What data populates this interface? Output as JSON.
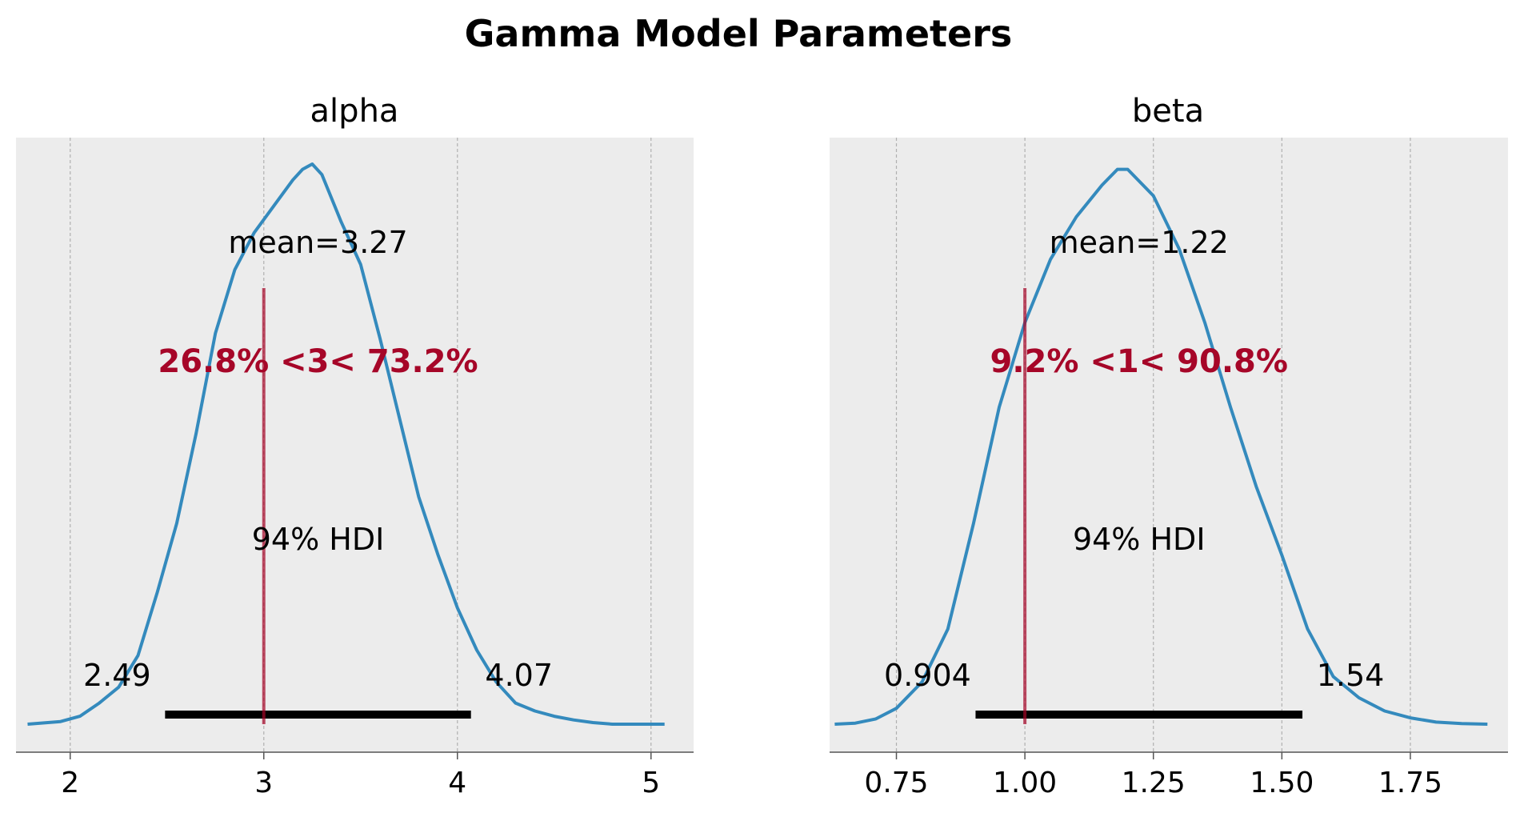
{
  "title": "Gamma Model Parameters",
  "chart_data": [
    {
      "type": "line",
      "title": "alpha",
      "xlim": [
        1.72,
        5.22
      ],
      "ylim": [
        0,
        1.06
      ],
      "xticks": [
        2,
        3,
        4,
        5
      ],
      "grid": true,
      "density": {
        "x": [
          1.78,
          1.95,
          2.05,
          2.15,
          2.25,
          2.35,
          2.45,
          2.55,
          2.65,
          2.75,
          2.85,
          2.95,
          3.05,
          3.15,
          3.2,
          3.25,
          3.3,
          3.4,
          3.5,
          3.6,
          3.7,
          3.8,
          3.9,
          4.0,
          4.1,
          4.2,
          4.3,
          4.4,
          4.5,
          4.6,
          4.7,
          4.8,
          4.9,
          5.0,
          5.07
        ],
        "y": [
          0.0,
          0.005,
          0.015,
          0.04,
          0.07,
          0.13,
          0.25,
          0.38,
          0.55,
          0.74,
          0.86,
          0.93,
          0.98,
          1.03,
          1.05,
          1.06,
          1.04,
          0.95,
          0.87,
          0.73,
          0.58,
          0.43,
          0.32,
          0.22,
          0.14,
          0.08,
          0.04,
          0.025,
          0.015,
          0.008,
          0.003,
          0.0,
          0.0,
          0.0,
          0.0
        ]
      },
      "mean_label": "mean=3.27",
      "ref_value": 3,
      "ref_label": "26.8% <3< 73.2%",
      "hdi": {
        "low": 2.49,
        "high": 4.07,
        "low_label": "2.49",
        "high_label": "4.07",
        "label": "94% HDI"
      }
    },
    {
      "type": "line",
      "title": "beta",
      "xlim": [
        0.62,
        1.94
      ],
      "ylim": [
        0,
        1.06
      ],
      "xticks": [
        0.75,
        1.0,
        1.25,
        1.5,
        1.75
      ],
      "xtick_labels": [
        "0.75",
        "1.00",
        "1.25",
        "1.50",
        "1.75"
      ],
      "grid": true,
      "density": {
        "x": [
          0.63,
          0.67,
          0.71,
          0.75,
          0.8,
          0.85,
          0.9,
          0.95,
          1.0,
          1.05,
          1.1,
          1.15,
          1.18,
          1.2,
          1.25,
          1.3,
          1.35,
          1.4,
          1.45,
          1.5,
          1.55,
          1.6,
          1.65,
          1.7,
          1.75,
          1.8,
          1.85,
          1.9
        ],
        "y": [
          0.0,
          0.002,
          0.01,
          0.03,
          0.08,
          0.18,
          0.38,
          0.6,
          0.76,
          0.88,
          0.96,
          1.02,
          1.05,
          1.05,
          1.0,
          0.9,
          0.76,
          0.6,
          0.45,
          0.32,
          0.18,
          0.09,
          0.05,
          0.025,
          0.012,
          0.004,
          0.001,
          0.0
        ]
      },
      "mean_label": "mean=1.22",
      "ref_value": 1.0,
      "ref_label": "9.2% <1< 90.8%",
      "hdi": {
        "low": 0.904,
        "high": 1.54,
        "low_label": "0.904",
        "high_label": "1.54",
        "label": "94% HDI"
      }
    }
  ],
  "colors": {
    "density": "#348abd",
    "reference": "#a60628",
    "hdi": "#000000",
    "background": "#ececec",
    "grid": "#b0b0b0",
    "spine": "#555555"
  }
}
